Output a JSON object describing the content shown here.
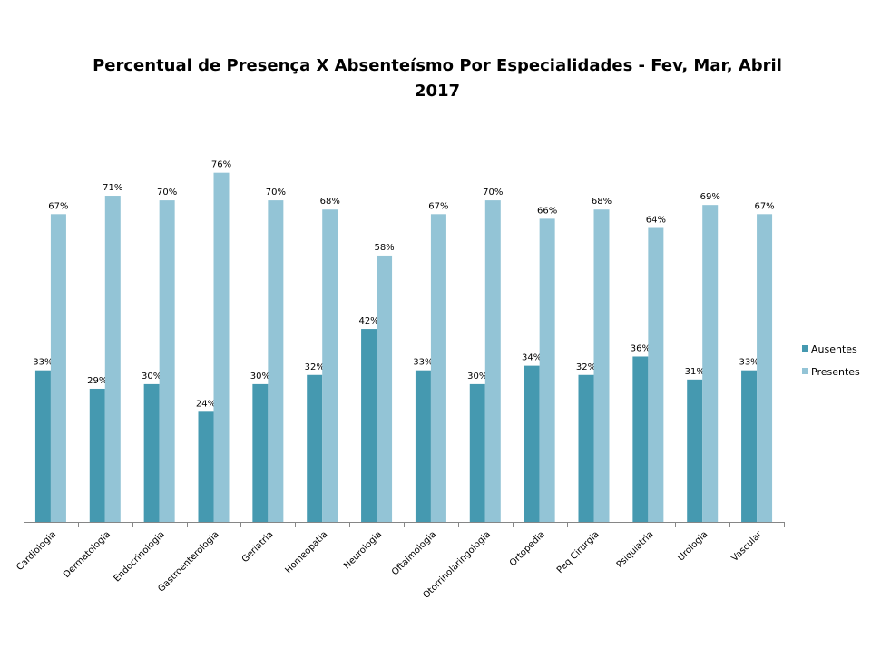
{
  "chart_data": {
    "type": "bar",
    "title": "Percentual de Presença X Absenteísmo Por Especialidades -  Fev, Mar, Abril",
    "title_line2": "2017",
    "xlabel": "",
    "ylabel": "",
    "ylim": [
      0,
      80
    ],
    "grid": false,
    "legend_position": "right",
    "categories": [
      "Cardiologia",
      "Dermatologia",
      "Endocrinologia",
      "Gastroenterologia",
      "Geriatria",
      "Homeopatia",
      "Neurologia",
      "Oftalmologia",
      "Otorrinolaringologia",
      "Ortopedia",
      "Peq Cirurgia",
      "Psiquiatria",
      "Urologia",
      "Vascular"
    ],
    "series": [
      {
        "name": "Ausentes",
        "color": "#4599B0",
        "values": [
          33,
          29,
          30,
          24,
          30,
          32,
          42,
          33,
          30,
          34,
          32,
          36,
          31,
          33
        ],
        "labels": [
          "33%",
          "29%",
          "30%",
          "24%",
          "30%",
          "32%",
          "42%",
          "33%",
          "30%",
          "34%",
          "32%",
          "36%",
          "31%",
          "33%"
        ]
      },
      {
        "name": "Presentes",
        "color": "#93C4D6",
        "values": [
          67,
          71,
          70,
          76,
          70,
          68,
          58,
          67,
          70,
          66,
          68,
          64,
          69,
          67
        ],
        "labels": [
          "67%",
          "71%",
          "70%",
          "76%",
          "70%",
          "68%",
          "58%",
          "67%",
          "70%",
          "66%",
          "68%",
          "64%",
          "69%",
          "67%"
        ]
      }
    ]
  }
}
